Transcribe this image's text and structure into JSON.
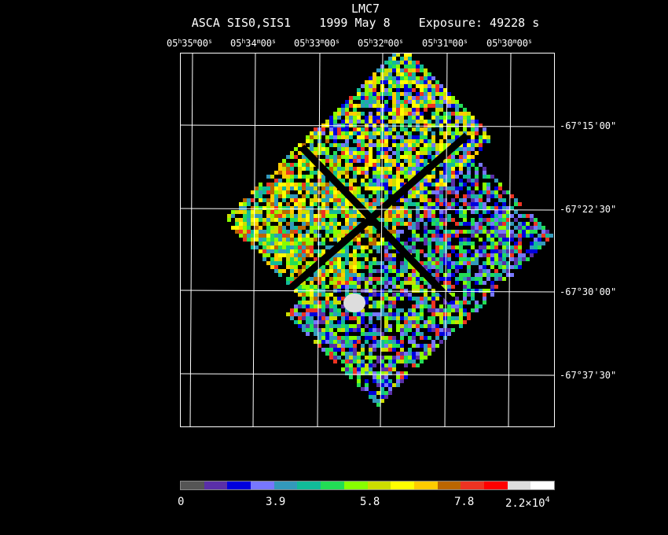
{
  "header": {
    "object": "LMC7",
    "instrument": "ASCA SIS0,SIS1",
    "date": "1999 May  8",
    "exposure": "Exposure: 49228 s"
  },
  "ra_labels": [
    {
      "h": "05",
      "m": "35",
      "s": "00"
    },
    {
      "h": "05",
      "m": "34",
      "s": "00"
    },
    {
      "h": "05",
      "m": "33",
      "s": "00"
    },
    {
      "h": "05",
      "m": "32",
      "s": "00"
    },
    {
      "h": "05",
      "m": "31",
      "s": "00"
    },
    {
      "h": "05",
      "m": "30",
      "s": "00"
    }
  ],
  "dec_labels": [
    "-67°15'00\"",
    "-67°22'30\"",
    "-67°30'00\"",
    "-67°37'30\""
  ],
  "colorbar": {
    "colors": [
      "#555555",
      "#5a2fa8",
      "#0000dd",
      "#7777ff",
      "#3399bb",
      "#11bb99",
      "#22dd55",
      "#88ff00",
      "#ccdd00",
      "#ffff00",
      "#ffcc00",
      "#bb6600",
      "#ee3322",
      "#ff0000",
      "#dddddd",
      "#ffffff"
    ],
    "labels": [
      "0",
      "3.9",
      "5.8",
      "7.8"
    ],
    "max_label_mantissa": "2.2×10",
    "max_label_exp": "4"
  }
}
